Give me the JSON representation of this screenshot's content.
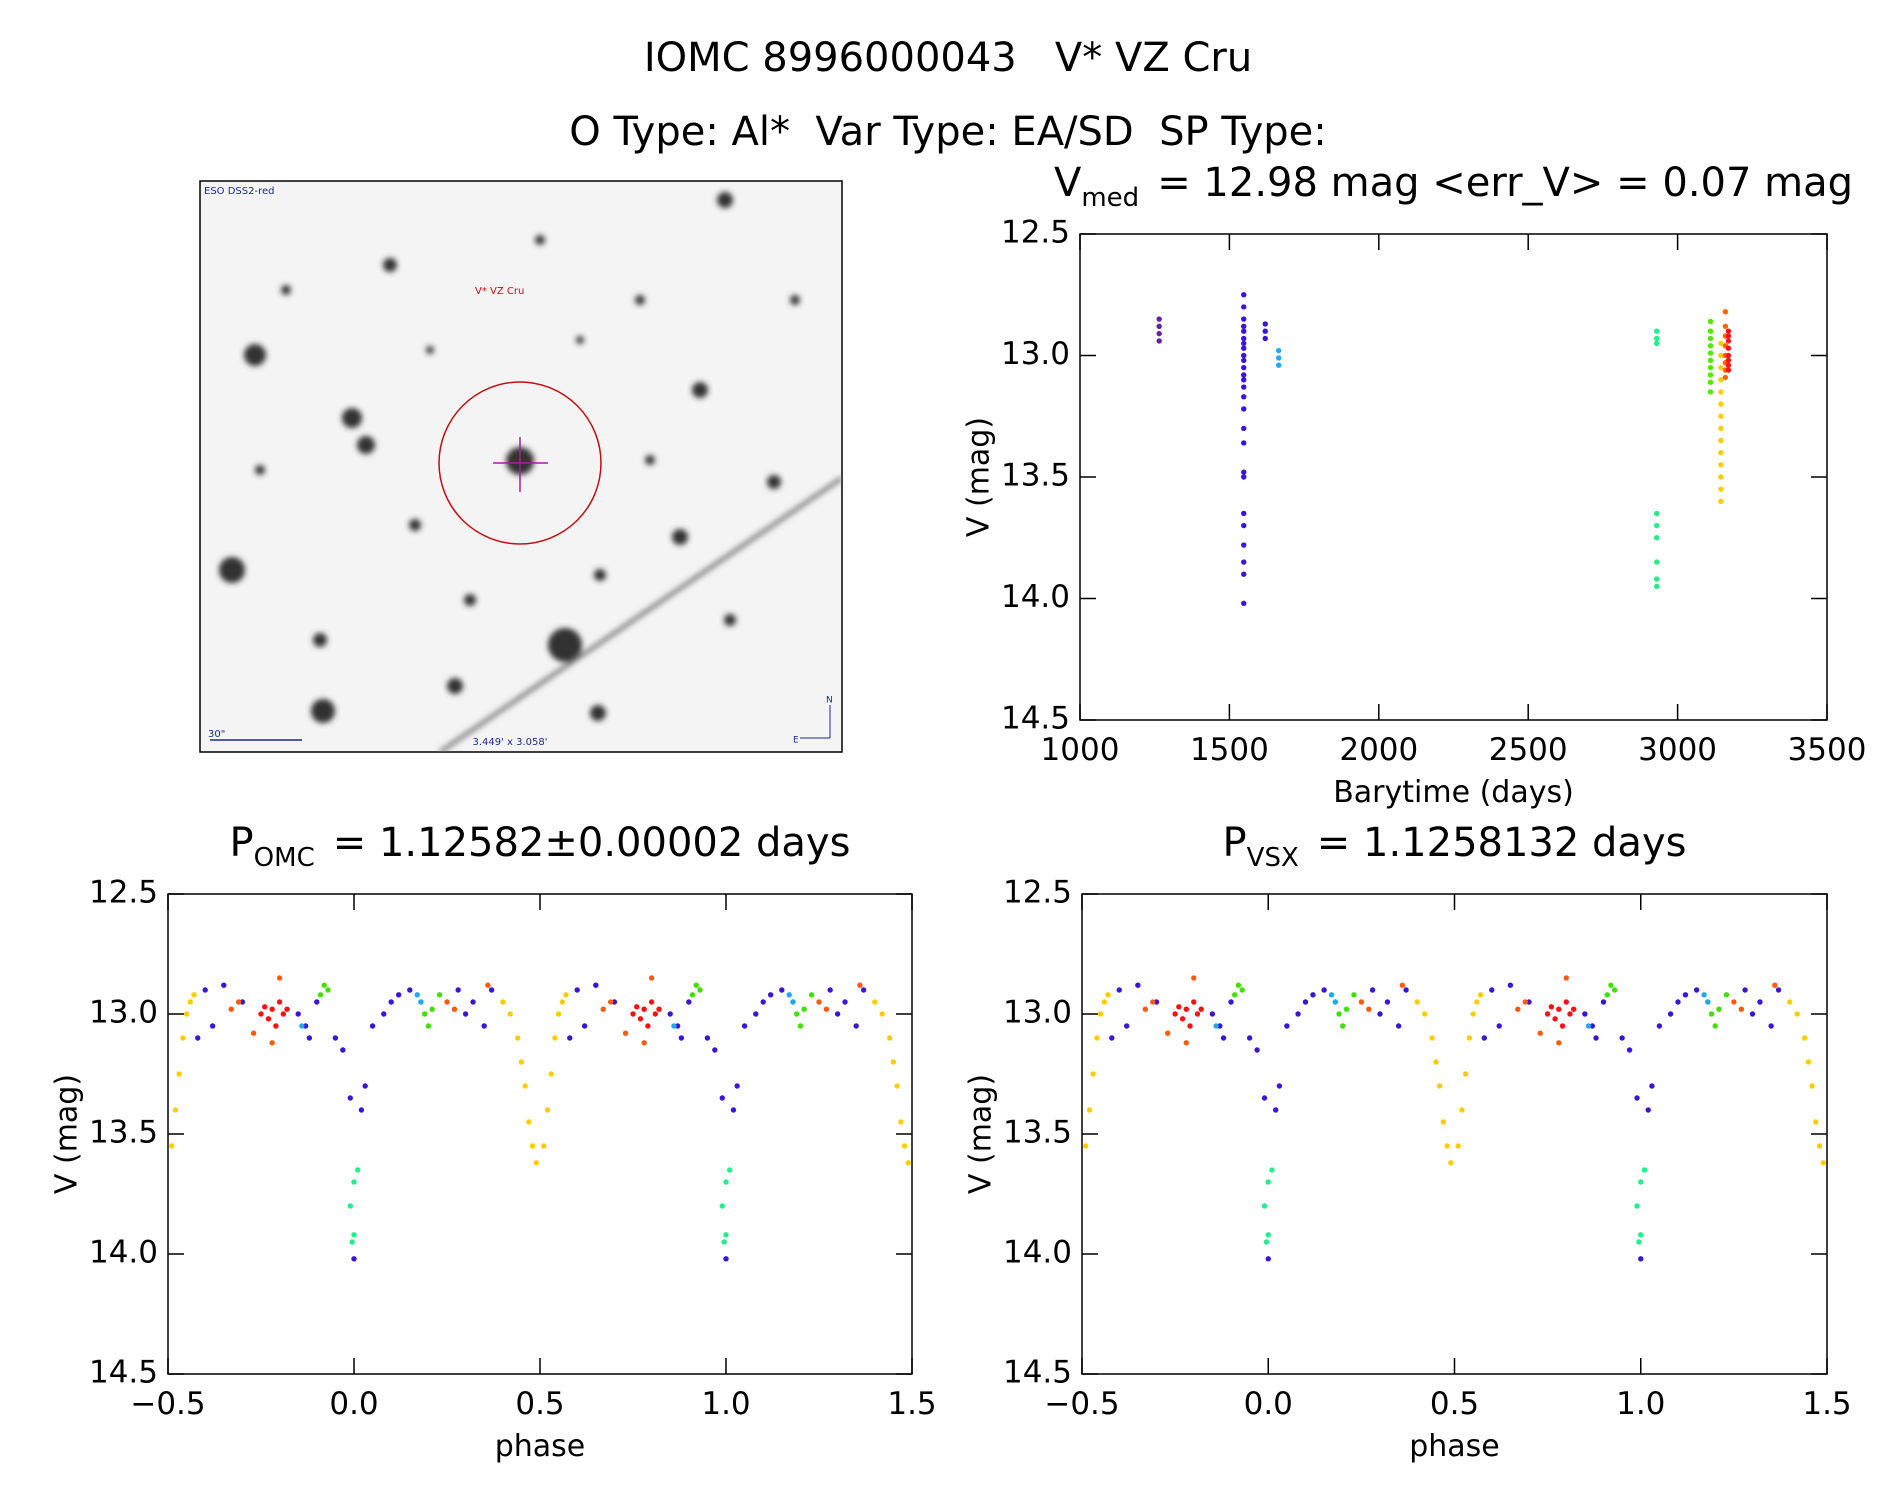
{
  "header": {
    "line1": "IOMC 8996000043   V* VZ Cru",
    "line2": "O Type: Al*  Var Type: EA/SD  SP Type:"
  },
  "image_panel": {
    "survey": "ESO DSS2-red",
    "target": "V* VZ Cru",
    "scale": "30\"",
    "size": "3.449' x 3.058'",
    "north": "N",
    "east": "E"
  },
  "chart_data": [
    {
      "type": "scatter",
      "title": {
        "main": "V",
        "sub": "med",
        "rest": "= 12.98 mag <err_V> = 0.07 mag"
      },
      "x_label": "Barytime (days)",
      "y_label": "V (mag)",
      "xlim": [
        1000,
        3500
      ],
      "ylim": [
        14.5,
        12.5
      ],
      "xticks": [
        1000,
        1500,
        2000,
        2500,
        3000,
        3500
      ],
      "yticks": [
        12.5,
        {
          "value": 13,
          "label": "13.0"
        },
        13.5,
        {
          "value": 14,
          "label": "14.0"
        },
        14.5
      ],
      "series": [
        {
          "color": "#6b1fa8",
          "x": [
            1265,
            1265,
            1265,
            1265
          ],
          "values": [
            12.85,
            12.88,
            12.91,
            12.94
          ]
        },
        {
          "color": "#3a14dc",
          "x": [
            1548,
            1548,
            1548,
            1548,
            1548,
            1548,
            1548,
            1548,
            1548,
            1548,
            1548,
            1548,
            1548,
            1548,
            1548,
            1548,
            1548,
            1548,
            1548,
            1548,
            1548,
            1548,
            1548,
            1548,
            1548,
            1548,
            1620,
            1620,
            1620
          ],
          "values": [
            12.75,
            12.8,
            12.85,
            12.88,
            12.9,
            12.93,
            12.95,
            12.97,
            13.0,
            13.02,
            13.05,
            13.08,
            13.1,
            13.13,
            13.17,
            13.22,
            13.3,
            13.36,
            13.48,
            13.5,
            13.65,
            13.7,
            13.78,
            13.85,
            13.9,
            14.02,
            12.87,
            12.9,
            12.93
          ]
        },
        {
          "color": "#1eaaf0",
          "x": [
            1665,
            1665,
            1665
          ],
          "values": [
            12.98,
            13.01,
            13.04
          ]
        },
        {
          "color": "#1ef08c",
          "x": [
            2930,
            2930,
            2930,
            2930,
            2930,
            2930,
            2930,
            2930,
            2930
          ],
          "values": [
            12.9,
            12.93,
            12.95,
            13.65,
            13.7,
            13.75,
            13.85,
            13.92,
            13.95
          ]
        },
        {
          "color": "#50ea00",
          "x": [
            3110,
            3110,
            3110,
            3110,
            3110,
            3110,
            3110,
            3110,
            3110,
            3110
          ],
          "values": [
            12.86,
            12.9,
            12.93,
            12.96,
            12.99,
            13.02,
            13.05,
            13.08,
            13.11,
            13.15
          ]
        },
        {
          "color": "#ffcc00",
          "x": [
            3145,
            3145,
            3145,
            3145,
            3145,
            3145,
            3145,
            3145,
            3145,
            3145,
            3145,
            3145,
            3145,
            3145
          ],
          "values": [
            12.95,
            13.0,
            13.05,
            13.1,
            13.15,
            13.2,
            13.25,
            13.3,
            13.35,
            13.4,
            13.45,
            13.5,
            13.55,
            13.6
          ]
        },
        {
          "color": "#ff6400",
          "x": [
            3160,
            3160,
            3160,
            3160,
            3160,
            3160,
            3160,
            3160
          ],
          "values": [
            12.82,
            12.88,
            12.92,
            12.96,
            13.0,
            13.03,
            13.06,
            13.09
          ]
        },
        {
          "color": "#ff1414",
          "x": [
            3170,
            3170,
            3170,
            3170,
            3170,
            3170,
            3170,
            3170
          ],
          "values": [
            12.9,
            12.94,
            12.97,
            13.0,
            13.02,
            13.04,
            13.06,
            12.92
          ]
        }
      ]
    },
    {
      "type": "scatter",
      "title": {
        "main": "P",
        "sub": "OMC",
        "rest": "= 1.12582±0.00002 days"
      },
      "x_label": "phase",
      "y_label": "V (mag)",
      "xlim": [
        -0.5,
        1.5
      ],
      "ylim": [
        14.5,
        12.5
      ],
      "xticks": [
        {
          "value": -0.5,
          "label": "−0.5"
        },
        {
          "value": 0,
          "label": "0.0"
        },
        0.5,
        {
          "value": 1,
          "label": "1.0"
        },
        1.5
      ],
      "yticks": [
        12.5,
        {
          "value": 13,
          "label": "13.0"
        },
        13.5,
        {
          "value": 14,
          "label": "14.0"
        },
        14.5
      ],
      "series": [
        {
          "color": "#ffcc00",
          "x": [
            -0.49,
            -0.48,
            -0.47,
            -0.46,
            -0.45,
            -0.44,
            -0.43,
            0.4,
            0.42,
            0.44,
            0.45,
            0.46,
            0.47,
            0.48,
            0.49,
            0.51,
            0.52,
            0.53,
            0.54,
            0.55,
            0.56,
            0.57,
            1.4,
            1.42,
            1.44,
            1.45,
            1.46,
            1.47,
            1.48,
            1.49
          ],
          "values": [
            13.55,
            13.4,
            13.25,
            13.1,
            13.0,
            12.95,
            12.92,
            12.95,
            13.0,
            13.1,
            13.2,
            13.3,
            13.45,
            13.55,
            13.62,
            13.55,
            13.4,
            13.25,
            13.1,
            13.0,
            12.95,
            12.92,
            12.95,
            13.0,
            13.1,
            13.2,
            13.3,
            13.45,
            13.55,
            13.62
          ]
        },
        {
          "color": "#3c14d8",
          "x": [
            -0.42,
            -0.4,
            -0.38,
            -0.35,
            -0.3,
            -0.15,
            -0.13,
            -0.12,
            -0.1,
            -0.05,
            -0.03,
            -0.01,
            0.0,
            0.02,
            0.03,
            0.05,
            0.08,
            0.1,
            0.12,
            0.15,
            0.28,
            0.3,
            0.32,
            0.35,
            0.37,
            0.58,
            0.6,
            0.62,
            0.65,
            0.7,
            0.85,
            0.87,
            0.88,
            0.9,
            0.95,
            0.97,
            0.99,
            1.0,
            1.02,
            1.03,
            1.05,
            1.08,
            1.1,
            1.12,
            1.15,
            1.28,
            1.3,
            1.32,
            1.35,
            1.37
          ],
          "values": [
            13.1,
            12.9,
            13.05,
            12.88,
            12.95,
            13.0,
            13.05,
            13.1,
            12.95,
            13.1,
            13.15,
            13.35,
            14.02,
            13.4,
            13.3,
            13.05,
            13.0,
            12.95,
            12.92,
            12.9,
            12.9,
            13.0,
            12.95,
            13.05,
            12.9,
            13.1,
            12.9,
            13.05,
            12.88,
            12.95,
            13.0,
            13.05,
            13.1,
            12.95,
            13.1,
            13.15,
            13.35,
            14.02,
            13.4,
            13.3,
            13.05,
            13.0,
            12.95,
            12.92,
            12.9,
            12.9,
            13.0,
            12.95,
            13.05,
            12.9
          ]
        },
        {
          "color": "#ff1010",
          "x": [
            -0.25,
            -0.24,
            -0.23,
            -0.22,
            -0.21,
            -0.2,
            -0.19,
            -0.18,
            0.75,
            0.76,
            0.77,
            0.78,
            0.79,
            0.8,
            0.81,
            0.82
          ],
          "values": [
            13.0,
            12.97,
            13.02,
            12.98,
            13.05,
            12.95,
            13.0,
            12.98,
            13.0,
            12.97,
            13.02,
            12.98,
            13.05,
            12.95,
            13.0,
            12.98
          ]
        },
        {
          "color": "#ff5a10",
          "x": [
            -0.33,
            -0.31,
            -0.27,
            -0.22,
            -0.2,
            0.25,
            0.27,
            0.36,
            0.67,
            0.69,
            0.73,
            0.78,
            0.8,
            1.25,
            1.27,
            1.36
          ],
          "values": [
            12.98,
            12.95,
            13.08,
            13.12,
            12.85,
            12.95,
            12.98,
            12.88,
            12.98,
            12.95,
            13.08,
            13.12,
            12.85,
            12.95,
            12.98,
            12.88
          ]
        },
        {
          "color": "#40e000",
          "x": [
            -0.09,
            -0.08,
            -0.07,
            0.18,
            0.19,
            0.2,
            0.21,
            0.23,
            0.91,
            0.92,
            0.93,
            1.18,
            1.19,
            1.2,
            1.21,
            1.23
          ],
          "values": [
            12.92,
            12.88,
            12.9,
            12.95,
            13.0,
            13.05,
            12.98,
            12.92,
            12.92,
            12.88,
            12.9,
            12.95,
            13.0,
            13.05,
            12.98,
            12.92
          ]
        },
        {
          "color": "#1eaaf0",
          "x": [
            -0.14,
            0.17,
            0.18,
            0.86,
            1.17,
            1.18
          ],
          "values": [
            13.05,
            12.92,
            12.95,
            13.05,
            12.92,
            12.95
          ]
        },
        {
          "color": "#1ef08c",
          "x": [
            -0.01,
            0.0,
            0.0,
            0.01,
            -0.005,
            0.99,
            1.0,
            1.0,
            1.01,
            0.995
          ],
          "values": [
            13.8,
            13.7,
            13.92,
            13.65,
            13.95,
            13.8,
            13.7,
            13.92,
            13.65,
            13.95
          ]
        }
      ]
    },
    {
      "type": "scatter",
      "title": {
        "main": "P",
        "sub": "VSX",
        "rest": "= 1.1258132 days"
      },
      "x_label": "phase",
      "y_label": "V (mag)",
      "xlim": [
        -0.5,
        1.5
      ],
      "ylim": [
        14.5,
        12.5
      ],
      "xticks": [
        {
          "value": -0.5,
          "label": "−0.5"
        },
        {
          "value": 0,
          "label": "0.0"
        },
        0.5,
        {
          "value": 1,
          "label": "1.0"
        },
        1.5
      ],
      "yticks": [
        12.5,
        {
          "value": 13,
          "label": "13.0"
        },
        13.5,
        {
          "value": 14,
          "label": "14.0"
        },
        14.5
      ],
      "series": [
        {
          "color": "#ffcc00",
          "x": [
            -0.49,
            -0.48,
            -0.47,
            -0.46,
            -0.45,
            -0.44,
            -0.43,
            0.4,
            0.42,
            0.44,
            0.45,
            0.46,
            0.47,
            0.48,
            0.49,
            0.51,
            0.52,
            0.53,
            0.54,
            0.55,
            0.56,
            0.57,
            1.4,
            1.42,
            1.44,
            1.45,
            1.46,
            1.47,
            1.48,
            1.49
          ],
          "values": [
            13.55,
            13.4,
            13.25,
            13.1,
            13.0,
            12.95,
            12.92,
            12.95,
            13.0,
            13.1,
            13.2,
            13.3,
            13.45,
            13.55,
            13.62,
            13.55,
            13.4,
            13.25,
            13.1,
            13.0,
            12.95,
            12.92,
            12.95,
            13.0,
            13.1,
            13.2,
            13.3,
            13.45,
            13.55,
            13.62
          ]
        },
        {
          "color": "#3c14d8",
          "x": [
            -0.42,
            -0.4,
            -0.38,
            -0.35,
            -0.3,
            -0.15,
            -0.13,
            -0.12,
            -0.1,
            -0.05,
            -0.03,
            -0.01,
            0.0,
            0.02,
            0.03,
            0.05,
            0.08,
            0.1,
            0.12,
            0.15,
            0.28,
            0.3,
            0.32,
            0.35,
            0.37,
            0.58,
            0.6,
            0.62,
            0.65,
            0.7,
            0.85,
            0.87,
            0.88,
            0.9,
            0.95,
            0.97,
            0.99,
            1.0,
            1.02,
            1.03,
            1.05,
            1.08,
            1.1,
            1.12,
            1.15,
            1.28,
            1.3,
            1.32,
            1.35,
            1.37
          ],
          "values": [
            13.1,
            12.9,
            13.05,
            12.88,
            12.95,
            13.0,
            13.05,
            13.1,
            12.95,
            13.1,
            13.15,
            13.35,
            14.02,
            13.4,
            13.3,
            13.05,
            13.0,
            12.95,
            12.92,
            12.9,
            12.9,
            13.0,
            12.95,
            13.05,
            12.9,
            13.1,
            12.9,
            13.05,
            12.88,
            12.95,
            13.0,
            13.05,
            13.1,
            12.95,
            13.1,
            13.15,
            13.35,
            14.02,
            13.4,
            13.3,
            13.05,
            13.0,
            12.95,
            12.92,
            12.9,
            12.9,
            13.0,
            12.95,
            13.05,
            12.9
          ]
        },
        {
          "color": "#ff1010",
          "x": [
            -0.25,
            -0.24,
            -0.23,
            -0.22,
            -0.21,
            -0.2,
            -0.19,
            -0.18,
            0.75,
            0.76,
            0.77,
            0.78,
            0.79,
            0.8,
            0.81,
            0.82
          ],
          "values": [
            13.0,
            12.97,
            13.02,
            12.98,
            13.05,
            12.95,
            13.0,
            12.98,
            13.0,
            12.97,
            13.02,
            12.98,
            13.05,
            12.95,
            13.0,
            12.98
          ]
        },
        {
          "color": "#ff5a10",
          "x": [
            -0.33,
            -0.31,
            -0.27,
            -0.22,
            -0.2,
            0.25,
            0.27,
            0.36,
            0.67,
            0.69,
            0.73,
            0.78,
            0.8,
            1.25,
            1.27,
            1.36
          ],
          "values": [
            12.98,
            12.95,
            13.08,
            13.12,
            12.85,
            12.95,
            12.98,
            12.88,
            12.98,
            12.95,
            13.08,
            13.12,
            12.85,
            12.95,
            12.98,
            12.88
          ]
        },
        {
          "color": "#40e000",
          "x": [
            -0.09,
            -0.08,
            -0.07,
            0.18,
            0.19,
            0.2,
            0.21,
            0.23,
            0.91,
            0.92,
            0.93,
            1.18,
            1.19,
            1.2,
            1.21,
            1.23
          ],
          "values": [
            12.92,
            12.88,
            12.9,
            12.95,
            13.0,
            13.05,
            12.98,
            12.92,
            12.92,
            12.88,
            12.9,
            12.95,
            13.0,
            13.05,
            12.98,
            12.92
          ]
        },
        {
          "color": "#1eaaf0",
          "x": [
            -0.14,
            0.17,
            0.18,
            0.86,
            1.17,
            1.18
          ],
          "values": [
            13.05,
            12.92,
            12.95,
            13.05,
            12.92,
            12.95
          ]
        },
        {
          "color": "#1ef08c",
          "x": [
            -0.01,
            0.0,
            0.0,
            0.01,
            -0.005,
            0.99,
            1.0,
            1.0,
            1.01,
            0.995
          ],
          "values": [
            13.8,
            13.7,
            13.92,
            13.65,
            13.95,
            13.8,
            13.7,
            13.92,
            13.65,
            13.95
          ]
        }
      ]
    }
  ]
}
